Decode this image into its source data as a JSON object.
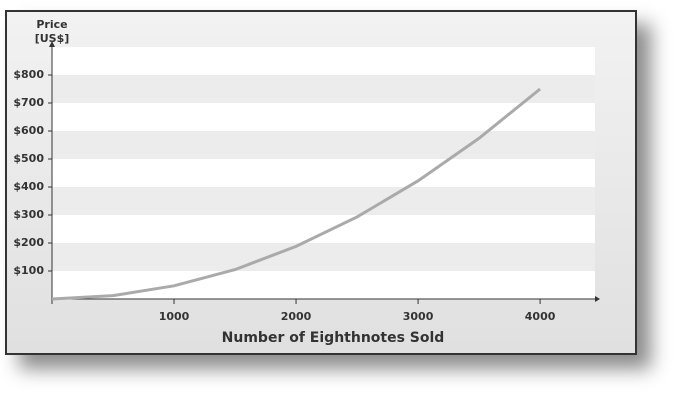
{
  "chart_data": {
    "type": "line",
    "y_label": [
      "Price",
      "[US$]"
    ],
    "x_label": "Number of Eighthnotes Sold",
    "x": [
      0,
      500,
      1000,
      1500,
      2000,
      2500,
      3000,
      3500,
      4000
    ],
    "values": [
      0,
      12,
      47,
      105,
      188,
      293,
      422,
      574,
      750
    ],
    "color": "#aaaaaa",
    "xlim": [
      0,
      4450
    ],
    "xticks": [
      1000,
      2000,
      3000,
      4000
    ],
    "ylim": [
      0,
      900
    ],
    "yticks": [
      {
        "value": 100,
        "label": "$100"
      },
      {
        "value": 200,
        "label": "$200"
      },
      {
        "value": 300,
        "label": "$300"
      },
      {
        "value": 400,
        "label": "$400"
      },
      {
        "value": 500,
        "label": "$500"
      },
      {
        "value": 600,
        "label": "$600"
      },
      {
        "value": 700,
        "label": "$700"
      },
      {
        "value": 800,
        "label": "$800"
      }
    ],
    "grid": "bands"
  }
}
